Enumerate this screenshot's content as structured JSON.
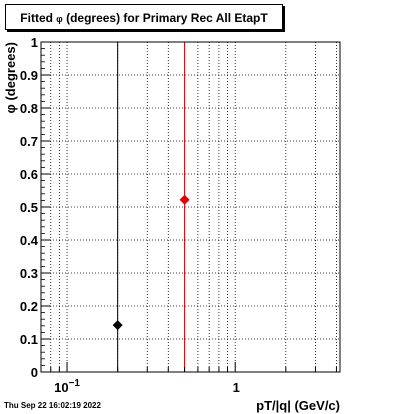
{
  "title": {
    "prefix": "Fitted ",
    "symbol": "φ",
    "suffix": " (degrees) for Primary Rec All EtapT"
  },
  "timestamp": "Thu Sep 22 16:02:19 2022",
  "colors": {
    "axis": "#000000",
    "grid": "#000000",
    "series_black": "#000000",
    "series_red": "#e00000"
  },
  "chart_data": {
    "type": "scatter",
    "x_scale": "log",
    "xlim": [
      0.07,
      4.2
    ],
    "ylim": [
      0,
      1
    ],
    "xlabel": "pT/|q| (GeV/c)",
    "ylabel": "φ (degrees)",
    "x_ticks": [
      {
        "value": 0.1,
        "label_base": "10",
        "label_exp": "−1"
      },
      {
        "value": 1,
        "label_base": "1",
        "label_exp": ""
      }
    ],
    "y_ticks": [
      0,
      0.1,
      0.2,
      0.3,
      0.4,
      0.5,
      0.6,
      0.7,
      0.8,
      0.9,
      1
    ],
    "grid": true,
    "series": [
      {
        "color": "#000000",
        "points": [
          {
            "x": 0.2,
            "y": 0.142
          }
        ]
      },
      {
        "color": "#e00000",
        "points": [
          {
            "x": 0.5,
            "y": 0.522
          }
        ]
      }
    ]
  }
}
